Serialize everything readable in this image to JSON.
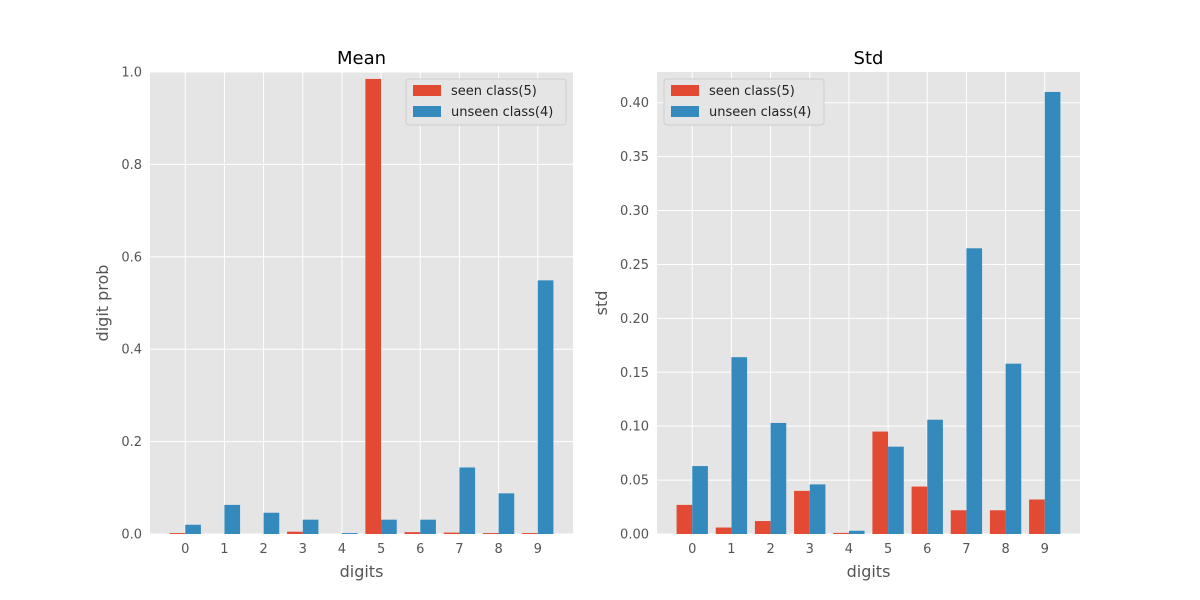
{
  "chart_data": [
    {
      "type": "bar",
      "title": "Mean",
      "xlabel": "digits",
      "ylabel": "digit prob",
      "categories": [
        "0",
        "1",
        "2",
        "3",
        "4",
        "5",
        "6",
        "7",
        "8",
        "9"
      ],
      "ylim": [
        0,
        1.0
      ],
      "yticks": [
        "0.0",
        "0.2",
        "0.4",
        "0.6",
        "0.8",
        "1.0"
      ],
      "legend_position": "upper right",
      "grid": true,
      "series": [
        {
          "name": "seen class(5)",
          "color": "#E24A33",
          "values": [
            0.002,
            0.0,
            0.0,
            0.005,
            0.0,
            0.985,
            0.004,
            0.003,
            0.002,
            0.002
          ]
        },
        {
          "name": "unseen class(4)",
          "color": "#348ABD",
          "values": [
            0.02,
            0.063,
            0.046,
            0.031,
            0.002,
            0.031,
            0.031,
            0.144,
            0.088,
            0.549
          ]
        }
      ]
    },
    {
      "type": "bar",
      "title": "Std",
      "xlabel": "digits",
      "ylabel": "std",
      "categories": [
        "0",
        "1",
        "2",
        "3",
        "4",
        "5",
        "6",
        "7",
        "8",
        "9"
      ],
      "ylim": [
        0,
        0.4285
      ],
      "yticks": [
        "0.00",
        "0.05",
        "0.10",
        "0.15",
        "0.20",
        "0.25",
        "0.30",
        "0.35",
        "0.40"
      ],
      "legend_position": "upper left",
      "grid": true,
      "series": [
        {
          "name": "seen class(5)",
          "color": "#E24A33",
          "values": [
            0.027,
            0.006,
            0.012,
            0.04,
            0.001,
            0.095,
            0.044,
            0.022,
            0.022,
            0.032
          ]
        },
        {
          "name": "unseen class(4)",
          "color": "#348ABD",
          "values": [
            0.063,
            0.164,
            0.103,
            0.046,
            0.003,
            0.081,
            0.106,
            0.265,
            0.158,
            0.41
          ]
        }
      ]
    }
  ]
}
